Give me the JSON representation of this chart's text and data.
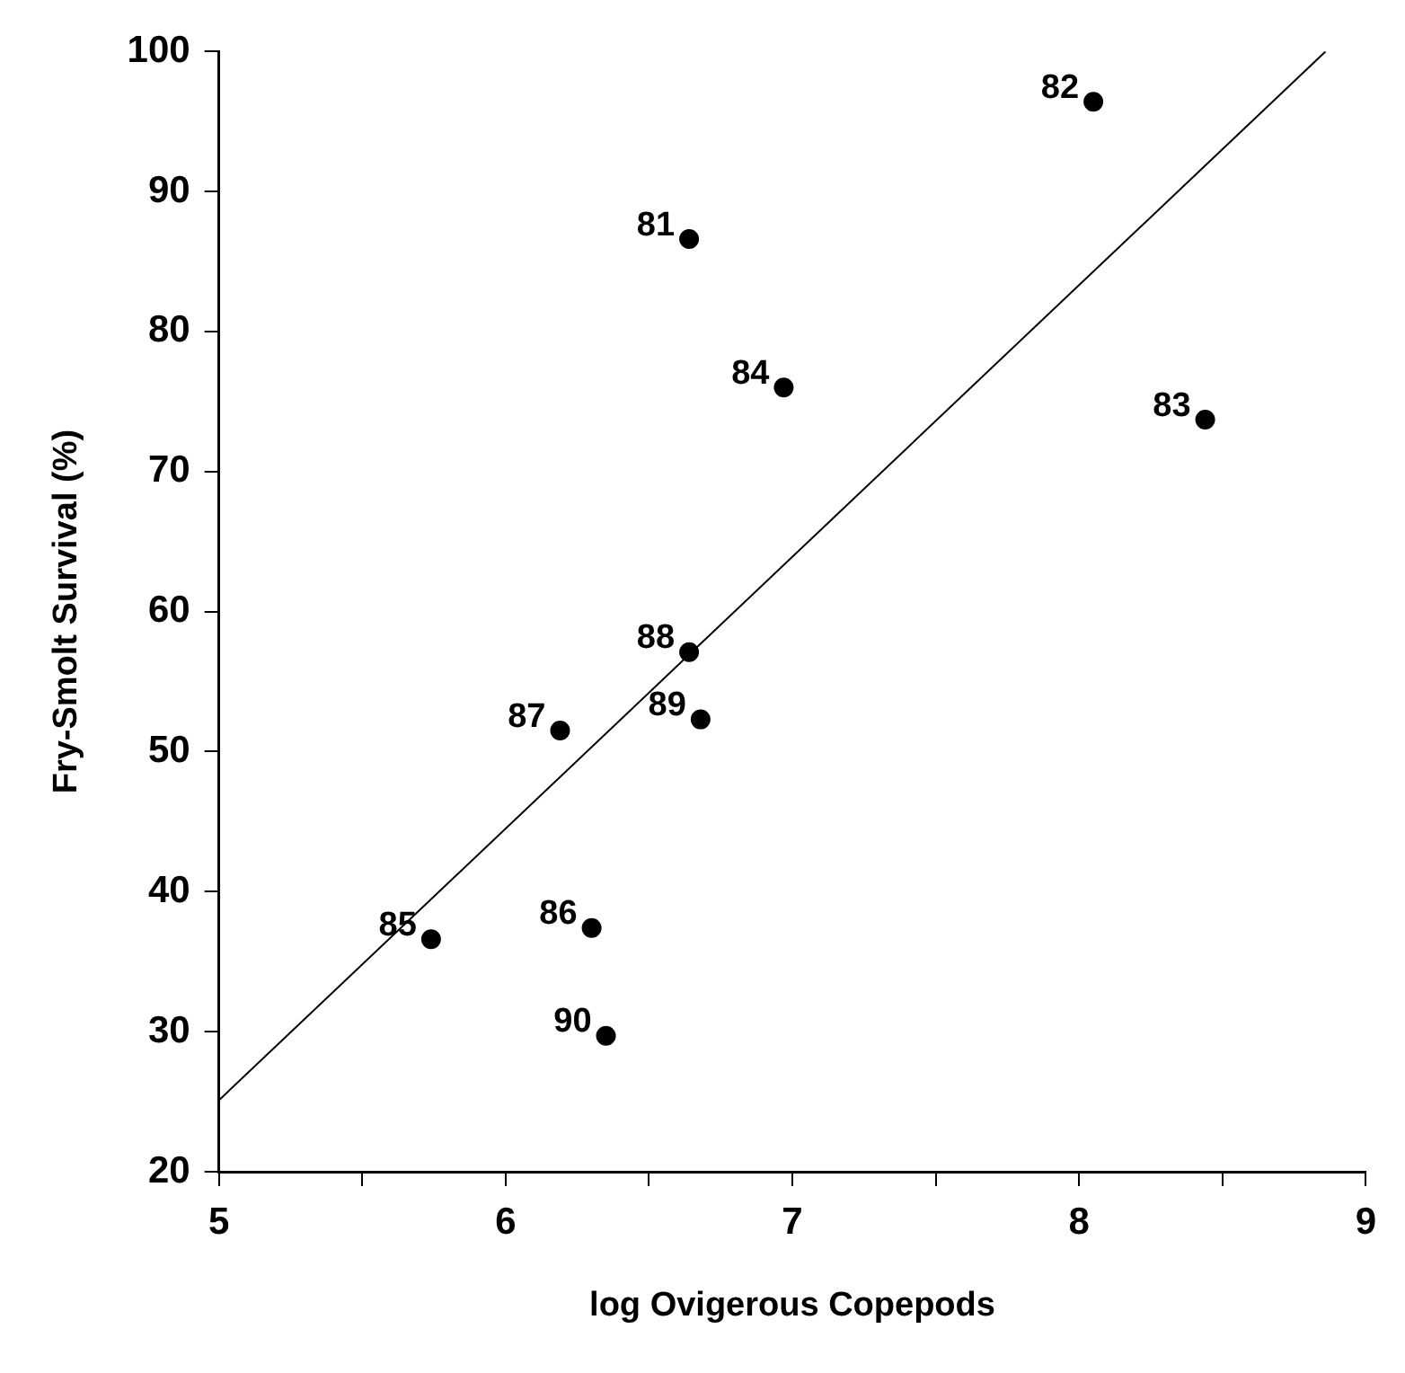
{
  "chart_data": {
    "type": "scatter",
    "xlabel": "log Ovigerous Copepods",
    "ylabel": "Fry-Smolt Survival (%)",
    "xlim": [
      5,
      9
    ],
    "xticks": [
      5,
      {
        "value": 5.5,
        "label": null
      },
      6,
      {
        "value": 6.5,
        "label": null
      },
      7,
      {
        "value": 7.5,
        "label": null
      },
      8,
      {
        "value": 8.5,
        "label": null
      },
      9
    ],
    "ylim": [
      20,
      100
    ],
    "yticks": [
      20,
      30,
      40,
      50,
      60,
      70,
      80,
      90,
      100
    ],
    "grid": false,
    "legend": false,
    "marker": "circle",
    "series": [
      {
        "type": "scatter",
        "color": "#000000",
        "x": [
          6.64,
          8.05,
          8.44,
          6.97,
          5.74,
          6.3,
          6.19,
          6.64,
          6.68,
          6.35
        ],
        "values": [
          86.6,
          96.4,
          73.7,
          76.0,
          36.6,
          37.4,
          51.5,
          57.1,
          52.3,
          29.7
        ]
      },
      {
        "type": "line",
        "color": "#000000",
        "marker": "none",
        "x": [
          5,
          8.86
        ],
        "values": [
          25.1,
          100
        ]
      }
    ],
    "annotations": [
      {
        "text": "81",
        "x": 6.64,
        "y": 86.6
      },
      {
        "text": "82",
        "x": 8.05,
        "y": 96.4
      },
      {
        "text": "83",
        "x": 8.44,
        "y": 73.7
      },
      {
        "text": "84",
        "x": 6.97,
        "y": 76.0
      },
      {
        "text": "85",
        "x": 5.74,
        "y": 36.6
      },
      {
        "text": "86",
        "x": 6.3,
        "y": 37.4
      },
      {
        "text": "87",
        "x": 6.19,
        "y": 51.5
      },
      {
        "text": "88",
        "x": 6.64,
        "y": 57.1
      },
      {
        "text": "89",
        "x": 6.68,
        "y": 52.3
      },
      {
        "text": "90",
        "x": 6.35,
        "y": 29.7
      }
    ]
  }
}
